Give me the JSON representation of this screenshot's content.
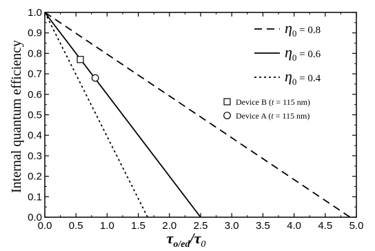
{
  "chart_data": {
    "type": "line",
    "xlabel": {
      "tau": "τ",
      "sub_num": "o/ed",
      "slash": "/",
      "sub_den": "0"
    },
    "ylabel": "Internal quantum efficiency",
    "xlim": [
      0.0,
      5.0
    ],
    "ylim": [
      0.0,
      1.0
    ],
    "xticks": [
      "0.0",
      "0.5",
      "1.0",
      "1.5",
      "2.0",
      "2.5",
      "3.0",
      "3.5",
      "4.0",
      "4.5",
      "5.0"
    ],
    "yticks": [
      "0.0",
      "0.1",
      "0.2",
      "0.3",
      "0.4",
      "0.5",
      "0.6",
      "0.7",
      "0.8",
      "0.9",
      "1.0"
    ],
    "grid": false,
    "legend_placement": "top-right",
    "series": [
      {
        "eta": "η",
        "sub": "0",
        "value": " = 0.8",
        "dash": "dashed",
        "x": [
          0.0,
          4.9
        ],
        "y": [
          1.0,
          0.0
        ]
      },
      {
        "eta": "η",
        "sub": "0",
        "value": " = 0.6",
        "dash": "solid",
        "x": [
          0.0,
          2.5
        ],
        "y": [
          1.0,
          0.0
        ]
      },
      {
        "eta": "η",
        "sub": "0",
        "value": " = 0.4",
        "dash": "dotted",
        "x": [
          0.0,
          1.65
        ],
        "y": [
          1.0,
          0.0
        ]
      }
    ],
    "points": [
      {
        "marker": "square",
        "x": 0.57,
        "y": 0.77,
        "label_pre": "Device B (",
        "label_var": "t",
        "label_post": " = 115 nm)"
      },
      {
        "marker": "circle",
        "x": 0.81,
        "y": 0.68,
        "label_pre": "Device A (",
        "label_var": "t",
        "label_post": " = 115 nm)"
      }
    ]
  }
}
